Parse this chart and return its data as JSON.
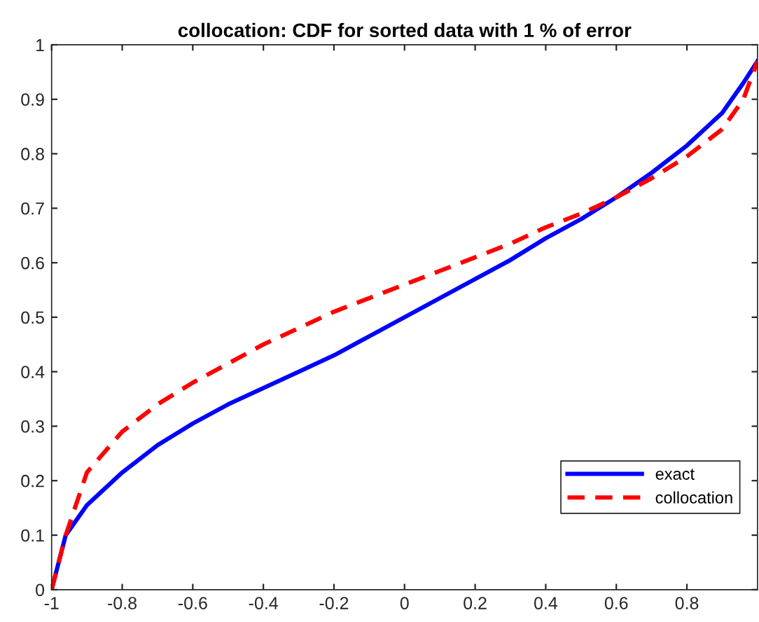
{
  "chart_data": {
    "type": "line",
    "title": "collocation: CDF for sorted data with 1 % of error",
    "x": [
      -1,
      -0.96,
      -0.9,
      -0.8,
      -0.7,
      -0.6,
      -0.5,
      -0.4,
      -0.3,
      -0.2,
      -0.1,
      0,
      0.1,
      0.2,
      0.3,
      0.4,
      0.5,
      0.6,
      0.7,
      0.8,
      0.9,
      0.96,
      1
    ],
    "series": [
      {
        "name": "exact",
        "color": "#0000ff",
        "line_style": "solid",
        "values": [
          0,
          0.1,
          0.155,
          0.215,
          0.265,
          0.305,
          0.34,
          0.37,
          0.4,
          0.43,
          0.465,
          0.5,
          0.535,
          0.57,
          0.605,
          0.645,
          0.68,
          0.72,
          0.765,
          0.815,
          0.875,
          0.93,
          0.97
        ]
      },
      {
        "name": "collocation",
        "color": "#ff0000",
        "line_style": "dashed",
        "values": [
          0,
          0.1,
          0.215,
          0.29,
          0.34,
          0.38,
          0.415,
          0.45,
          0.48,
          0.51,
          0.535,
          0.56,
          0.585,
          0.61,
          0.635,
          0.665,
          0.69,
          0.72,
          0.755,
          0.795,
          0.845,
          0.9,
          0.97
        ]
      }
    ],
    "xlim": [
      -1,
      1
    ],
    "ylim": [
      0,
      1
    ],
    "xticks": [
      -1,
      -0.8,
      -0.6,
      -0.4,
      -0.2,
      0,
      0.2,
      0.4,
      0.6,
      0.8
    ],
    "yticks": [
      0,
      0.1,
      0.2,
      0.3,
      0.4,
      0.5,
      0.6,
      0.7,
      0.8,
      0.9,
      1
    ],
    "grid": false,
    "legend": "bottom right",
    "marker": "none"
  }
}
